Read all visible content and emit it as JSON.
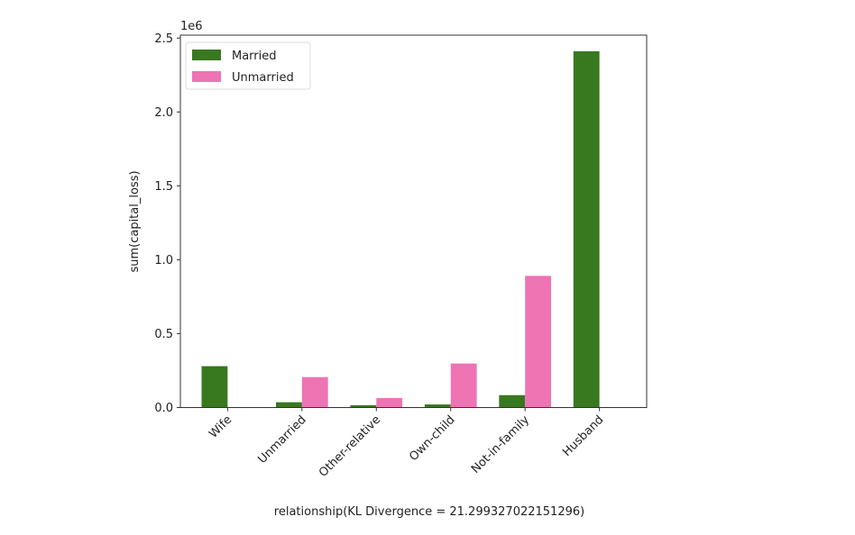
{
  "chart_data": {
    "type": "bar",
    "title": "",
    "xlabel": "relationship(KL Divergence = 21.299327022151296)",
    "ylabel": "sum(capital_loss)",
    "y_offset_label": "1e6",
    "categories": [
      "Wife",
      "Unmarried",
      "Other-relative",
      "Own-child",
      "Not-in-family",
      "Husband"
    ],
    "series": [
      {
        "name": "Married",
        "color": "#38781f",
        "values": [
          280000,
          36000,
          16000,
          21000,
          84000,
          2411000
        ]
      },
      {
        "name": "Unmarried",
        "color": "#ee74b4",
        "values": [
          0,
          206000,
          64000,
          298000,
          891000,
          0
        ]
      }
    ],
    "yticks": [
      0,
      0.5,
      1.0,
      1.5,
      2.0,
      2.5
    ],
    "ytick_labels": [
      "0.0",
      "0.5",
      "1.0",
      "1.5",
      "2.0",
      "2.5"
    ],
    "ylim": [
      0,
      2520000
    ],
    "legend_position": "top-left",
    "grid": false
  }
}
